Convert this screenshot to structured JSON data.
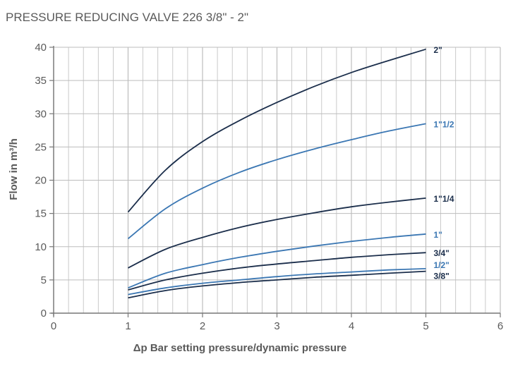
{
  "chart_data": {
    "type": "line",
    "title": "PRESSURE REDUCING VALVE 226 3/8\" - 2\"",
    "xlabel": "Δp Bar setting pressure/dynamic pressure",
    "ylabel": "Flow in m³/h",
    "xlim": [
      0,
      6
    ],
    "ylim": [
      0,
      40
    ],
    "x_ticks": [
      0,
      1,
      2,
      3,
      4,
      5,
      6
    ],
    "y_ticks": [
      0,
      5,
      10,
      15,
      20,
      25,
      30,
      35,
      40
    ],
    "grid": true,
    "x": [
      1,
      1.5,
      2,
      2.5,
      3,
      3.5,
      4,
      4.5,
      5
    ],
    "series": [
      {
        "name": "2\"",
        "color": "#1b2e4b",
        "values": [
          15.2,
          21.5,
          25.8,
          29.0,
          31.7,
          34.1,
          36.2,
          38.0,
          39.7
        ]
      },
      {
        "name": "1\"1/2",
        "color": "#3b77b3",
        "values": [
          11.2,
          15.7,
          18.8,
          21.2,
          23.1,
          24.7,
          26.1,
          27.4,
          28.5
        ]
      },
      {
        "name": "1\"1/4",
        "color": "#1b2e4b",
        "values": [
          6.8,
          9.6,
          11.4,
          12.9,
          14.1,
          15.1,
          16.0,
          16.7,
          17.3
        ]
      },
      {
        "name": "1\"",
        "color": "#3b77b3",
        "values": [
          3.8,
          6.0,
          7.3,
          8.4,
          9.3,
          10.1,
          10.8,
          11.4,
          11.9
        ]
      },
      {
        "name": "3/4\"",
        "color": "#1b2e4b",
        "values": [
          3.5,
          5.0,
          6.0,
          6.8,
          7.4,
          7.9,
          8.4,
          8.8,
          9.1
        ]
      },
      {
        "name": "1/2\"",
        "color": "#3b77b3",
        "values": [
          2.8,
          3.8,
          4.5,
          5.0,
          5.5,
          5.9,
          6.2,
          6.5,
          6.7
        ]
      },
      {
        "name": "3/8\"",
        "color": "#1b2e4b",
        "values": [
          2.3,
          3.4,
          4.1,
          4.6,
          5.0,
          5.4,
          5.7,
          6.0,
          6.3
        ]
      }
    ]
  }
}
